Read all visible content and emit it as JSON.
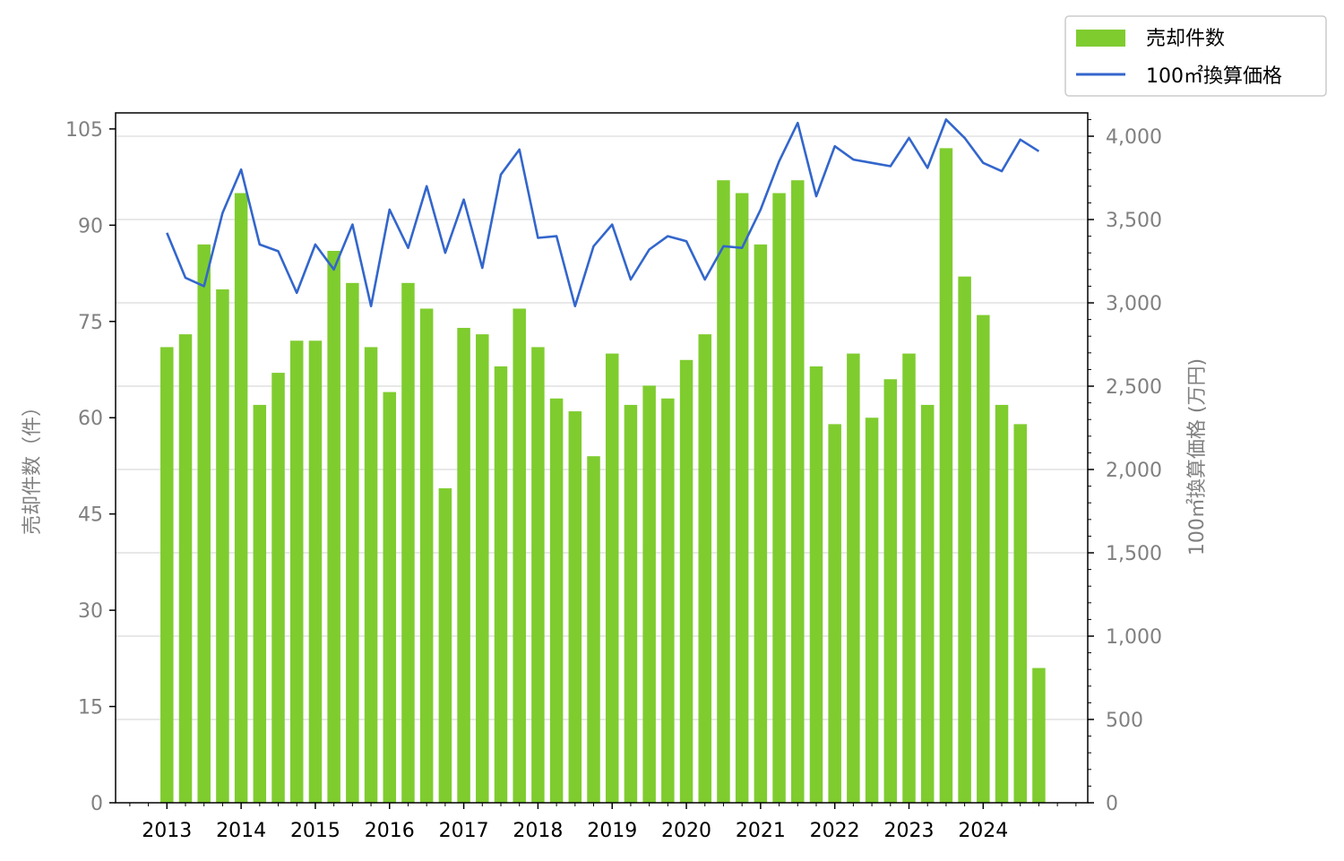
{
  "chart_data": {
    "type": "bar",
    "ylabel_left": "売却件数（件）",
    "ylabel_right": "100㎡換算価格 (万円)",
    "ylim_left": [
      0,
      107.5
    ],
    "ylim_right": [
      0,
      4140
    ],
    "yticks_left": [
      0,
      15,
      30,
      45,
      60,
      75,
      90,
      105
    ],
    "yticks_right": [
      0,
      500,
      1000,
      1500,
      2000,
      2500,
      3000,
      3500,
      4000
    ],
    "ytick_labels_left": [
      "0",
      "15",
      "30",
      "45",
      "60",
      "75",
      "90",
      "105"
    ],
    "ytick_labels_right": [
      "0",
      "500",
      "1,000",
      "1,500",
      "2,000",
      "2,500",
      "3,000",
      "3,500",
      "4,000"
    ],
    "year_labels": [
      "2013",
      "2014",
      "2015",
      "2016",
      "2017",
      "2018",
      "2019",
      "2020",
      "2021",
      "2022",
      "2023",
      "2024"
    ],
    "grid": "horizontal (right axis)",
    "legend_position": "top-right (outside)",
    "colors": {
      "bar": "#7fcc2f",
      "line": "#3366cc",
      "grid": "#d9d9d9"
    },
    "series": [
      {
        "name": "売却件数",
        "type": "bar",
        "axis": "left",
        "values": [
          71,
          73,
          87,
          80,
          95,
          62,
          67,
          72,
          72,
          86,
          81,
          71,
          64,
          81,
          77,
          49,
          74,
          73,
          68,
          77,
          71,
          63,
          61,
          54,
          70,
          62,
          65,
          63,
          69,
          73,
          97,
          95,
          87,
          95,
          97,
          68,
          59,
          70,
          60,
          66,
          70,
          62,
          102,
          82,
          76,
          62,
          59,
          21
        ]
      },
      {
        "name": "100㎡換算価格",
        "type": "line",
        "axis": "right",
        "values": [
          3420,
          3150,
          3100,
          3540,
          3800,
          3350,
          3310,
          3060,
          3350,
          3200,
          3470,
          2980,
          3560,
          3330,
          3700,
          3300,
          3620,
          3210,
          3770,
          3920,
          3390,
          3400,
          2980,
          3340,
          3470,
          3140,
          3320,
          3400,
          3370,
          3140,
          3340,
          3330,
          3560,
          3850,
          4080,
          3640,
          3940,
          3860,
          3840,
          3820,
          3990,
          3810,
          4100,
          3990,
          3840,
          3790,
          3980,
          3910
        ]
      }
    ]
  }
}
